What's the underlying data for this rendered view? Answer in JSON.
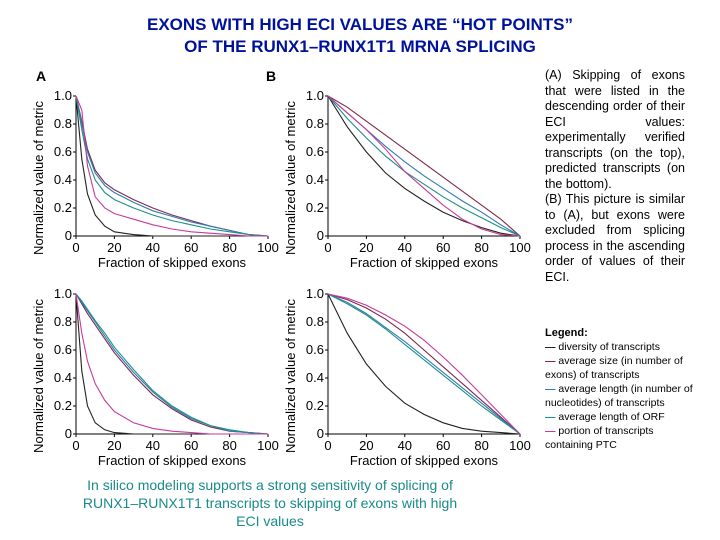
{
  "title_line1": "EXONS WITH HIGH ECI VALUES ARE “HOT POINTS”",
  "title_line2": "OF THE RUNX1–RUNX1T1 MRNA SPLICING",
  "panel_labels": [
    "A",
    "B"
  ],
  "description_a": "(A) Skipping of exons that were listed in the descending order of their ECI values: experimentally verified transcripts (on the top), predicted transcripts (on the bottom).",
  "description_b": "(B) This picture is similar to (A), but exons were excluded from splicing process in the ascending order of values of their ECI.",
  "legend": {
    "title": "Legend:",
    "items": [
      {
        "text": "diversity of transcripts",
        "color": "#222222"
      },
      {
        "text": "average size (in number of exons) of transcripts",
        "color": "#7b2a4a"
      },
      {
        "text": "average length (in number of nucleotides) of transcripts",
        "color": "#2e7bb6"
      },
      {
        "text": "average length of ORF",
        "color": "#1f8f86"
      },
      {
        "text": "portion of transcripts containing PTC",
        "color": "#c73a9c"
      }
    ]
  },
  "bottom_caption": "In silico modeling supports a strong sensitivity of splicing of RUNX1–RUNX1T1 transcripts to skipping of exons with high ECI values",
  "chart_data": [
    {
      "type": "line",
      "panel": "A-top",
      "xlabel": "Fraction of skipped exons",
      "ylabel": "Normalized value of metric",
      "xlim": [
        0,
        100
      ],
      "ylim": [
        0,
        1
      ],
      "xticks": [
        "0",
        "20",
        "40",
        "60",
        "80",
        "100"
      ],
      "yticks": [
        "0",
        "0.2",
        "0.4",
        "0.6",
        "0.8",
        "1.0"
      ],
      "x": [
        0,
        3,
        6,
        10,
        15,
        20,
        30,
        40,
        50,
        60,
        70,
        80,
        90,
        100
      ],
      "series": [
        {
          "color": "#222222",
          "values": [
            1.0,
            0.55,
            0.3,
            0.15,
            0.07,
            0.03,
            0.01,
            0,
            0,
            0,
            0,
            0,
            0,
            0
          ]
        },
        {
          "color": "#7b2a4a",
          "values": [
            1.0,
            0.82,
            0.62,
            0.47,
            0.38,
            0.33,
            0.26,
            0.2,
            0.15,
            0.11,
            0.07,
            0.04,
            0.01,
            0
          ]
        },
        {
          "color": "#2e7bb6",
          "values": [
            1.0,
            0.8,
            0.6,
            0.45,
            0.36,
            0.31,
            0.24,
            0.18,
            0.14,
            0.1,
            0.07,
            0.04,
            0.01,
            0
          ]
        },
        {
          "color": "#1f8f86",
          "values": [
            1.0,
            0.76,
            0.55,
            0.4,
            0.31,
            0.26,
            0.2,
            0.15,
            0.11,
            0.08,
            0.05,
            0.03,
            0.01,
            0
          ]
        },
        {
          "color": "#c73a9c",
          "values": [
            1.0,
            0.9,
            0.5,
            0.28,
            0.2,
            0.16,
            0.12,
            0.08,
            0.05,
            0.03,
            0.02,
            0.01,
            0,
            0
          ]
        }
      ]
    },
    {
      "type": "line",
      "panel": "B-top",
      "xlabel": "Fraction of skipped exons",
      "ylabel": "Normalized value of metric",
      "xlim": [
        0,
        100
      ],
      "ylim": [
        0,
        1
      ],
      "xticks": [
        "0",
        "20",
        "40",
        "60",
        "80",
        "100"
      ],
      "yticks": [
        "0",
        "0.2",
        "0.4",
        "0.6",
        "0.8",
        "1.0"
      ],
      "x": [
        0,
        10,
        20,
        30,
        40,
        50,
        60,
        70,
        80,
        90,
        100
      ],
      "series": [
        {
          "color": "#222222",
          "values": [
            1.0,
            0.78,
            0.6,
            0.45,
            0.34,
            0.25,
            0.17,
            0.11,
            0.06,
            0.02,
            0
          ]
        },
        {
          "color": "#7b2a4a",
          "values": [
            1.0,
            0.92,
            0.82,
            0.72,
            0.62,
            0.52,
            0.42,
            0.32,
            0.22,
            0.12,
            0
          ]
        },
        {
          "color": "#2e7bb6",
          "values": [
            1.0,
            0.88,
            0.76,
            0.64,
            0.53,
            0.43,
            0.34,
            0.25,
            0.17,
            0.08,
            0
          ]
        },
        {
          "color": "#1f8f86",
          "values": [
            1.0,
            0.84,
            0.7,
            0.57,
            0.46,
            0.37,
            0.28,
            0.2,
            0.13,
            0.06,
            0
          ]
        },
        {
          "color": "#c73a9c",
          "values": [
            1.0,
            0.88,
            0.76,
            0.62,
            0.46,
            0.34,
            0.22,
            0.12,
            0.05,
            0.01,
            0
          ]
        }
      ]
    },
    {
      "type": "line",
      "panel": "A-bottom",
      "xlabel": "Fraction of skipped exons",
      "ylabel": "Normalized value of metric",
      "xlim": [
        0,
        100
      ],
      "ylim": [
        0,
        1
      ],
      "xticks": [
        "0",
        "20",
        "40",
        "60",
        "80",
        "100"
      ],
      "yticks": [
        "0",
        "0.2",
        "0.4",
        "0.6",
        "0.8",
        "1.0"
      ],
      "x": [
        0,
        3,
        6,
        10,
        15,
        20,
        30,
        40,
        50,
        60,
        70,
        80,
        90,
        100
      ],
      "series": [
        {
          "color": "#222222",
          "values": [
            1.0,
            0.45,
            0.2,
            0.08,
            0.03,
            0.01,
            0,
            0,
            0,
            0,
            0,
            0,
            0,
            0
          ]
        },
        {
          "color": "#7b2a4a",
          "values": [
            1.0,
            0.93,
            0.86,
            0.78,
            0.68,
            0.58,
            0.42,
            0.28,
            0.18,
            0.1,
            0.05,
            0.02,
            0.01,
            0
          ]
        },
        {
          "color": "#2e7bb6",
          "values": [
            1.0,
            0.94,
            0.88,
            0.8,
            0.7,
            0.6,
            0.44,
            0.3,
            0.19,
            0.11,
            0.06,
            0.02,
            0.01,
            0
          ]
        },
        {
          "color": "#1f8f86",
          "values": [
            1.0,
            0.95,
            0.89,
            0.81,
            0.72,
            0.62,
            0.46,
            0.31,
            0.2,
            0.12,
            0.06,
            0.03,
            0.01,
            0
          ]
        },
        {
          "color": "#c73a9c",
          "values": [
            1.0,
            0.72,
            0.52,
            0.36,
            0.24,
            0.16,
            0.08,
            0.04,
            0.02,
            0.01,
            0,
            0,
            0,
            0
          ]
        }
      ]
    },
    {
      "type": "line",
      "panel": "B-bottom",
      "xlabel": "Fraction of skipped exons",
      "ylabel": "Normalized value of metric",
      "xlim": [
        0,
        100
      ],
      "ylim": [
        0,
        1
      ],
      "xticks": [
        "0",
        "20",
        "40",
        "60",
        "80",
        "100"
      ],
      "yticks": [
        "0",
        "0.2",
        "0.4",
        "0.6",
        "0.8",
        "1.0"
      ],
      "x": [
        0,
        10,
        20,
        30,
        40,
        50,
        60,
        70,
        80,
        90,
        100
      ],
      "series": [
        {
          "color": "#222222",
          "values": [
            1.0,
            0.72,
            0.5,
            0.34,
            0.22,
            0.14,
            0.08,
            0.04,
            0.02,
            0.01,
            0
          ]
        },
        {
          "color": "#7b2a4a",
          "values": [
            1.0,
            0.96,
            0.9,
            0.82,
            0.72,
            0.6,
            0.48,
            0.36,
            0.24,
            0.12,
            0
          ]
        },
        {
          "color": "#2e7bb6",
          "values": [
            1.0,
            0.94,
            0.86,
            0.76,
            0.66,
            0.55,
            0.44,
            0.33,
            0.22,
            0.11,
            0
          ]
        },
        {
          "color": "#1f8f86",
          "values": [
            1.0,
            0.93,
            0.85,
            0.75,
            0.64,
            0.53,
            0.42,
            0.31,
            0.2,
            0.1,
            0
          ]
        },
        {
          "color": "#c73a9c",
          "values": [
            1.0,
            0.97,
            0.92,
            0.85,
            0.77,
            0.67,
            0.55,
            0.42,
            0.28,
            0.14,
            0
          ]
        }
      ]
    }
  ]
}
